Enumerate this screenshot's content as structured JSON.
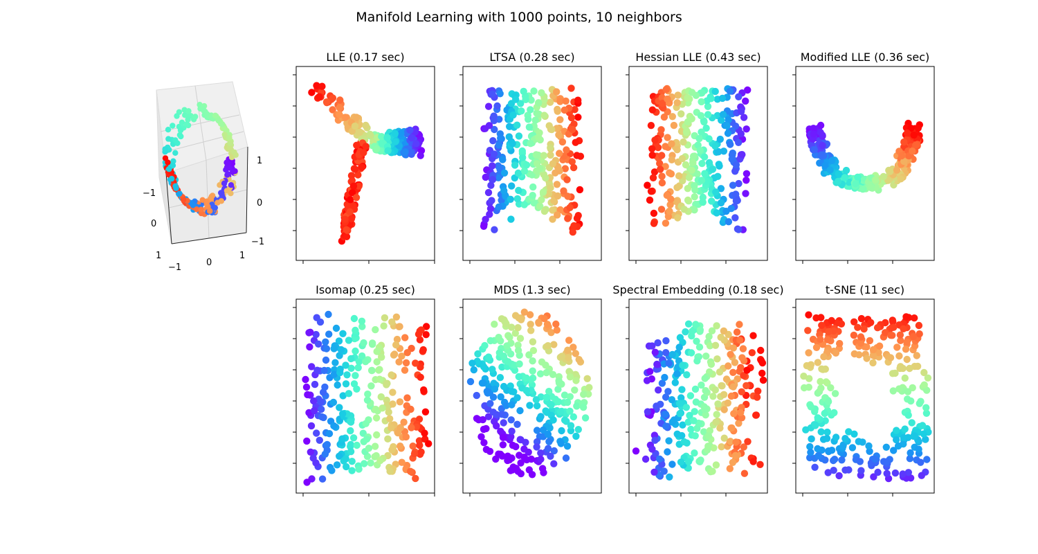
{
  "figure": {
    "suptitle": "Manifold Learning with 1000 points, 10 neighbors"
  },
  "colormap": [
    "#8000ff",
    "#4c50fc",
    "#1996f3",
    "#1acee3",
    "#4df8ce",
    "#80ffb4",
    "#b3f896",
    "#e6ce74",
    "#ff964f",
    "#ff5028",
    "#ff0000"
  ],
  "panel_3d": {
    "type": "scatter3d",
    "ticks": {
      "x": [
        "−1",
        "0",
        "1"
      ],
      "y": [
        "−1",
        "0",
        "1"
      ],
      "z": [
        "−1",
        "0",
        "1"
      ]
    },
    "shape": "s-curve viewed from above"
  },
  "chart_data": [
    {
      "type": "scatter",
      "title": "LLE (0.17 sec)",
      "shape": "three-armed (Y-shape), red arm pointing down, purple arm pointing right"
    },
    {
      "type": "scatter",
      "title": "LTSA (0.28 sec)",
      "shape": "arch / rectangle, purple left to red right"
    },
    {
      "type": "scatter",
      "title": "Hessian LLE (0.43 sec)",
      "shape": "arch / rectangle, red left to purple right"
    },
    {
      "type": "scatter",
      "title": "Modified LLE (0.36 sec)",
      "shape": "U-shape, purple left arm, red right arm"
    },
    {
      "type": "scatter",
      "title": "Isomap (0.25 sec)",
      "shape": "rectangle pinched at the middle, purple left to red right"
    },
    {
      "type": "scatter",
      "title": "MDS (1.3 sec)",
      "shape": "ellipse, purple at bottom, red at top-right"
    },
    {
      "type": "scatter",
      "title": "Spectral Embedding (0.18 sec)",
      "shape": "rough rectangle with ragged edges, purple left to red right"
    },
    {
      "type": "scatter",
      "title": "t-SNE (11 sec)",
      "shape": "ring-like rectangle, red top, purple bottom"
    }
  ]
}
